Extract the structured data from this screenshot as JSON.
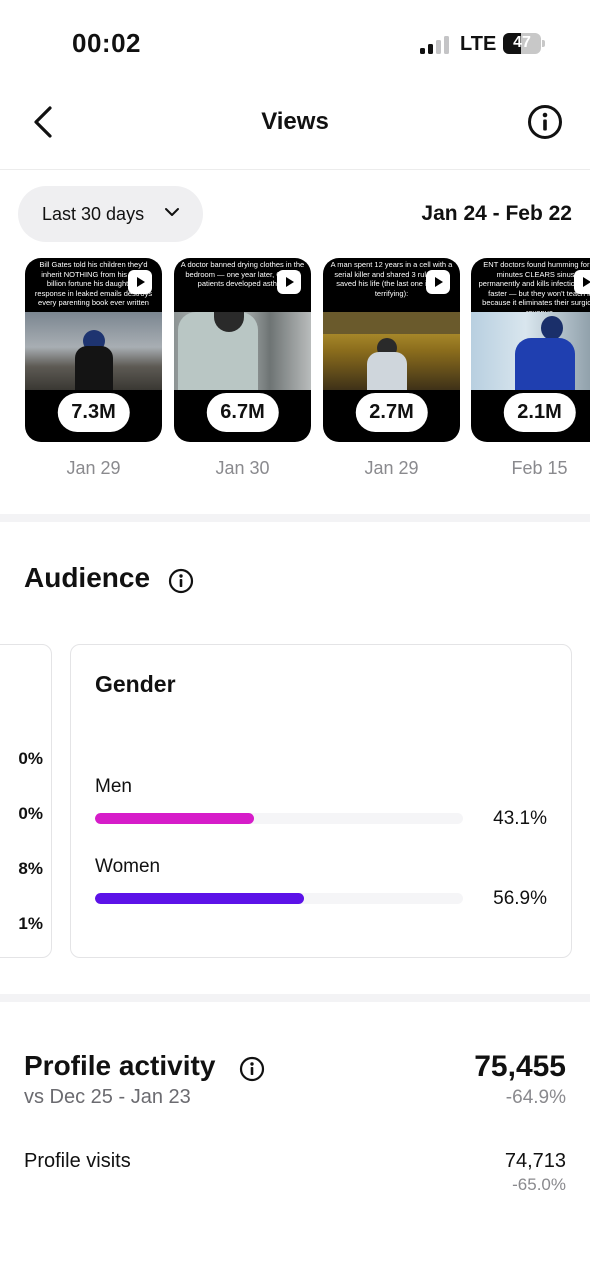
{
  "status_bar": {
    "time": "00:02",
    "network": "LTE",
    "battery_level": "47",
    "battery_fraction": 0.47,
    "signal_bars_active": 2,
    "signal_bars_total": 4
  },
  "header": {
    "title": "Views",
    "back_icon": "chevron-left-icon",
    "info_icon": "info-icon"
  },
  "filter": {
    "range_label": "Last 30 days",
    "date_range": "Jan 24 - Feb 22"
  },
  "top_content": [
    {
      "caption": "Bill Gates told his children they'd inherit NOTHING from his $129 billion fortune his daughter's response in leaked emails destroys every parenting book ever written",
      "views": "7.3M",
      "date": "Jan 29"
    },
    {
      "caption": "A doctor banned drying clothes in the bedroom — one year later, 60% of patients developed asthma",
      "views": "6.7M",
      "date": "Jan 30"
    },
    {
      "caption": "A man spent 12 years in a cell with a serial killer and shared 3 rules that saved his life (the last one is truly terrifying):",
      "views": "2.7M",
      "date": "Jan 29"
    },
    {
      "caption": "ENT doctors found humming for 2 minutes CLEARS sinuses permanently and kills infection 520% faster — but they won't teach it because it eliminates their surgical revenue",
      "views": "2.1M",
      "date": "Feb 15"
    }
  ],
  "audience": {
    "title": "Audience",
    "age_values": [
      "0%",
      "0%",
      "8%",
      "1%"
    ],
    "gender": {
      "title": "Gender",
      "rows": [
        {
          "label": "Men",
          "value": "43.1%",
          "percent": 43.1,
          "color": "#d61cc9"
        },
        {
          "label": "Women",
          "value": "56.9%",
          "percent": 56.9,
          "color": "#5c12e8"
        }
      ]
    }
  },
  "profile_activity": {
    "title": "Profile activity",
    "compare": "vs Dec 25 - Jan 23",
    "total": "75,455",
    "total_change": "-64.9%",
    "rows": [
      {
        "label": "Profile visits",
        "value": "74,713",
        "change": "-65.0%"
      }
    ]
  }
}
